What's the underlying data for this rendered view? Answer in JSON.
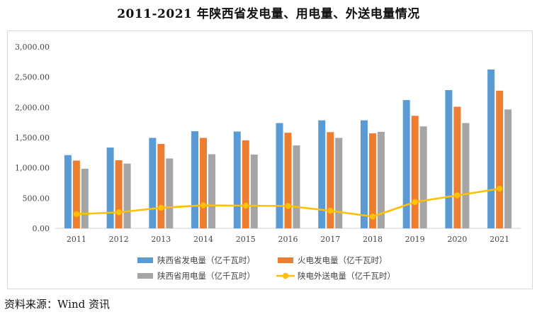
{
  "title": "2011-2021 年陕西省发电量、用电量、外送电量情况",
  "source": "资料来源：Wind 资讯",
  "chart_data": {
    "type": "bar",
    "categories": [
      "2011",
      "2012",
      "2013",
      "2014",
      "2015",
      "2016",
      "2017",
      "2018",
      "2019",
      "2020",
      "2021"
    ],
    "ylim": [
      0,
      3000
    ],
    "yticks": [
      "0.00",
      "500.00",
      "1,000.00",
      "1,500.00",
      "2,000.00",
      "2,500.00",
      "3,000.00"
    ],
    "ytick_values": [
      0,
      500,
      1000,
      1500,
      2000,
      2500,
      3000
    ],
    "grid": false,
    "legend_position": "bottom",
    "series": [
      {
        "name": "陕西省发电量（亿千瓦时）",
        "type": "bar",
        "color": "#5b9bd5",
        "values": [
          1210,
          1335,
          1495,
          1605,
          1600,
          1740,
          1785,
          1785,
          2120,
          2285,
          2625
        ]
      },
      {
        "name": "火电发电量（亿千瓦时）",
        "type": "bar",
        "color": "#ed7d31",
        "values": [
          1120,
          1125,
          1395,
          1495,
          1455,
          1580,
          1590,
          1570,
          1860,
          2010,
          2275
        ]
      },
      {
        "name": "陕西省用电量（亿千瓦时）",
        "type": "bar",
        "color": "#a5a5a5",
        "values": [
          985,
          1070,
          1155,
          1225,
          1220,
          1370,
          1495,
          1595,
          1685,
          1740,
          1965
        ]
      },
      {
        "name": "陕电外送电量（亿千瓦时）",
        "type": "line",
        "color": "#ffc000",
        "values": [
          235,
          265,
          340,
          380,
          375,
          370,
          290,
          195,
          435,
          545,
          655
        ]
      }
    ]
  }
}
